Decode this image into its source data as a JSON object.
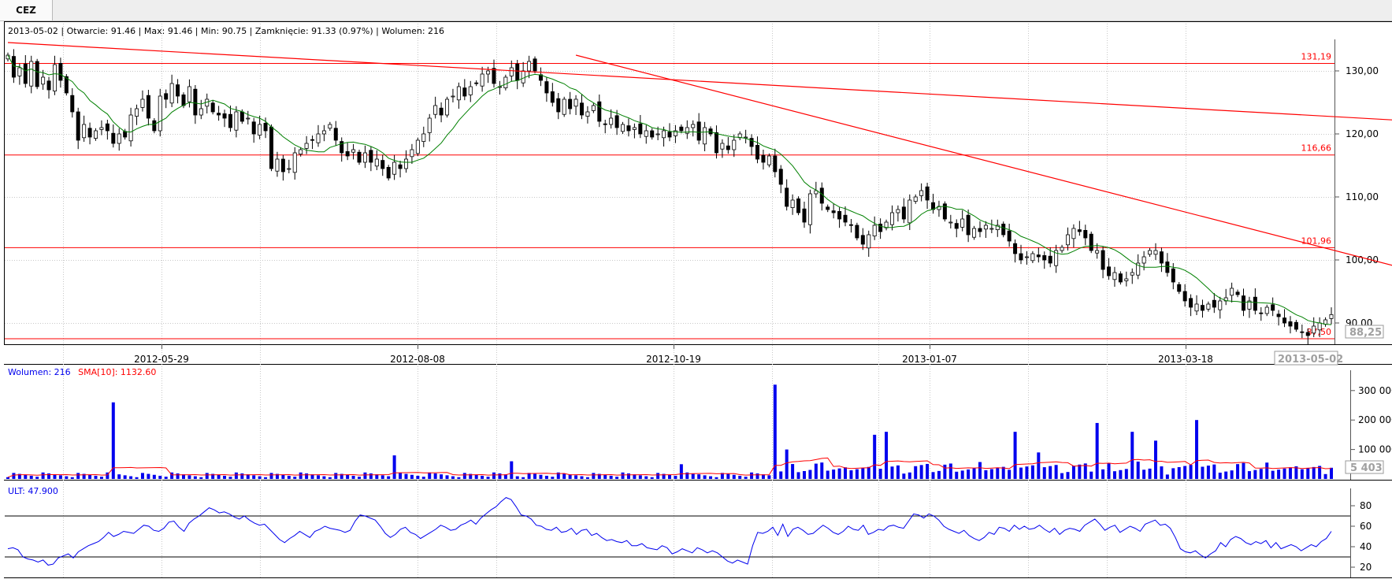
{
  "tab": {
    "label": "CEZ"
  },
  "price_info": "2013-05-02 | Otwarcie: 91.46 | Max: 91.46 | Min: 90.75 | Zamknięcie: 91.33 (0.97%)  | Wolumen: 216",
  "volume_info": {
    "volume": "Wolumen: 216",
    "sma": "SMA[10]: 1132.60"
  },
  "ult_info": "ULT: 47.900",
  "price_tag": "88,25",
  "volume_tag": "5 403",
  "date_tag": "2013-05-02",
  "colors": {
    "bull": "#ffffff",
    "bear": "#000000",
    "sma": "#008000",
    "line": "#ff0000",
    "volume": "#0000ee",
    "ult": "#0000ee",
    "grid": "#c8c8c8"
  },
  "chart_data": [
    {
      "type": "candlestick",
      "x_labels": [
        "2012-05-29",
        "2012-08-08",
        "2012-10-19",
        "2013-01-07",
        "2013-03-18"
      ],
      "y_ticks": [
        "130,00",
        "120,00",
        "110,00",
        "100,00",
        "90,00"
      ],
      "levels": [
        {
          "value": 131.19,
          "label": "131,19"
        },
        {
          "value": 116.66,
          "label": "116,66"
        },
        {
          "value": 101.96,
          "label": "101,96"
        },
        {
          "value": 87.5,
          "label": "87,50"
        }
      ],
      "trendlines": [
        {
          "from": [
            0,
            134.5
          ],
          "to": [
            260,
            121.0
          ]
        },
        {
          "from": [
            97,
            132.5
          ],
          "to": [
            260,
            93.5
          ]
        }
      ],
      "closes": [
        132.5,
        129.0,
        130.5,
        128.0,
        131.5,
        127.5,
        129.0,
        127.0,
        131.0,
        128.5,
        126.5,
        123.5,
        119.0,
        121.5,
        119.5,
        120.5,
        121.0,
        120.5,
        118.5,
        120.0,
        119.5,
        123.0,
        124.0,
        125.5,
        122.5,
        120.5,
        126.0,
        125.5,
        128.0,
        126.0,
        124.5,
        127.5,
        123.0,
        124.0,
        125.5,
        123.5,
        123.0,
        122.5,
        121.0,
        123.5,
        122.0,
        122.5,
        120.0,
        121.5,
        120.5,
        114.5,
        116.0,
        114.0,
        114.5,
        117.0,
        117.5,
        118.5,
        119.0,
        120.0,
        120.5,
        121.5,
        119.0,
        117.0,
        116.5,
        117.5,
        115.5,
        117.0,
        115.5,
        116.0,
        114.5,
        113.0,
        115.5,
        114.5,
        116.0,
        117.5,
        119.0,
        120.0,
        122.5,
        124.5,
        123.0,
        125.5,
        126.0,
        127.5,
        126.0,
        127.5,
        128.0,
        129.5,
        130.0,
        128.0,
        127.5,
        129.0,
        130.5,
        128.5,
        130.0,
        131.5,
        130.0,
        128.5,
        126.5,
        125.0,
        123.5,
        125.5,
        124.0,
        125.5,
        123.0,
        123.5,
        124.5,
        122.0,
        121.5,
        122.5,
        121.0,
        121.5,
        120.5,
        121.0,
        120.0,
        120.5,
        119.5,
        120.0,
        120.5,
        119.5,
        120.5,
        120.5,
        121.0,
        121.5,
        119.0,
        121.0,
        120.0,
        117.0,
        118.5,
        117.5,
        119.0,
        120.0,
        119.5,
        118.0,
        116.0,
        115.5,
        116.5,
        114.0,
        112.0,
        108.5,
        109.5,
        107.5,
        106.0,
        110.5,
        111.0,
        109.0,
        108.0,
        107.5,
        106.5,
        106.0,
        105.5,
        103.5,
        102.5,
        104.0,
        105.5,
        104.5,
        106.0,
        107.5,
        108.0,
        106.5,
        109.5,
        110.0,
        111.0,
        109.5,
        108.0,
        108.5,
        106.5,
        106.0,
        105.0,
        106.5,
        104.0,
        105.0,
        104.5,
        105.5,
        105.0,
        105.5,
        104.0,
        103.0,
        101.0,
        100.0,
        100.5,
        101.0,
        100.5,
        100.0,
        99.5,
        101.5,
        102.0,
        104.0,
        105.0,
        104.5,
        103.5,
        101.5,
        101.5,
        98.5,
        97.5,
        98.0,
        96.5,
        97.0,
        98.0,
        99.5,
        100.5,
        101.5,
        101.5,
        99.5,
        98.0,
        96.5,
        95.0,
        93.5,
        92.5,
        93.0,
        92.0,
        93.0,
        92.5,
        93.5,
        94.0,
        95.5,
        94.5,
        92.0,
        93.5,
        92.0,
        91.5,
        92.5,
        92.0,
        91.0,
        90.0,
        89.5,
        89.0,
        88.5,
        88.0,
        89.5,
        90.0,
        90.5,
        91.33
      ]
    },
    {
      "type": "bar",
      "title": "Wolumen",
      "y_ticks": [
        "300 000",
        "200 000",
        "100 000"
      ],
      "spikes": {
        "18": 260000,
        "66": 80000,
        "86": 60000,
        "115": 50000,
        "131": 320000,
        "133": 100000,
        "148": 150000,
        "150": 160000,
        "172": 160000,
        "176": 90000,
        "186": 190000,
        "192": 160000,
        "196": 130000,
        "203": 200000
      }
    },
    {
      "type": "line",
      "title": "ULT",
      "y_ticks": [
        "80",
        "60",
        "40",
        "20"
      ],
      "levels": [
        70,
        30
      ],
      "values": [
        38,
        39,
        37,
        30,
        28,
        27,
        25,
        27,
        22,
        23,
        29,
        31,
        33,
        29,
        35,
        38,
        41,
        43,
        45,
        49,
        54,
        50,
        52,
        55,
        54,
        53,
        57,
        61,
        60,
        56,
        55,
        58,
        64,
        65,
        59,
        55,
        63,
        67,
        70,
        74,
        78,
        76,
        73,
        74,
        72,
        69,
        67,
        70,
        66,
        63,
        61,
        62,
        57,
        52,
        47,
        44,
        48,
        51,
        55,
        52,
        49,
        55,
        57,
        60,
        58,
        57,
        56,
        54,
        56,
        65,
        71,
        70,
        68,
        66,
        60,
        53,
        49,
        52,
        57,
        59,
        54,
        52,
        48,
        51,
        54,
        57,
        61,
        59,
        56,
        57,
        61,
        63,
        66,
        62,
        68,
        72,
        76,
        79,
        84,
        88,
        86,
        79,
        71,
        70,
        67,
        61,
        60,
        57,
        56,
        59,
        54,
        55,
        58,
        52,
        56,
        57,
        51,
        53,
        49,
        46,
        47,
        45,
        44,
        46,
        41,
        41,
        43,
        39,
        38,
        37,
        41,
        39,
        33,
        35,
        38,
        36,
        34,
        39,
        37,
        34,
        36,
        34,
        30,
        26,
        24,
        27,
        25,
        23,
        41,
        54,
        53,
        55,
        59,
        51,
        62,
        50,
        57,
        59,
        56,
        52,
        53,
        57,
        61,
        58,
        54,
        52,
        55,
        60,
        57,
        56,
        61,
        52,
        54,
        57,
        56,
        60,
        61,
        59,
        58,
        65,
        72,
        71,
        68,
        72,
        70,
        66,
        60,
        57,
        55,
        53,
        56,
        51,
        48,
        46,
        49,
        54,
        52,
        59,
        58,
        55,
        61,
        57,
        60,
        57,
        58,
        61,
        57,
        54,
        58,
        52,
        56,
        58,
        57,
        55,
        61,
        64,
        67,
        62,
        56,
        59,
        61,
        54,
        57,
        60,
        58,
        55,
        62,
        64,
        66,
        61,
        62,
        58,
        49,
        38,
        35,
        34,
        36,
        32,
        29,
        33,
        36,
        44,
        40,
        47,
        50,
        48,
        44,
        42,
        45,
        43,
        46,
        39,
        44,
        38,
        40,
        42,
        40,
        36,
        39,
        42,
        40,
        45,
        48,
        55
      ]
    }
  ]
}
